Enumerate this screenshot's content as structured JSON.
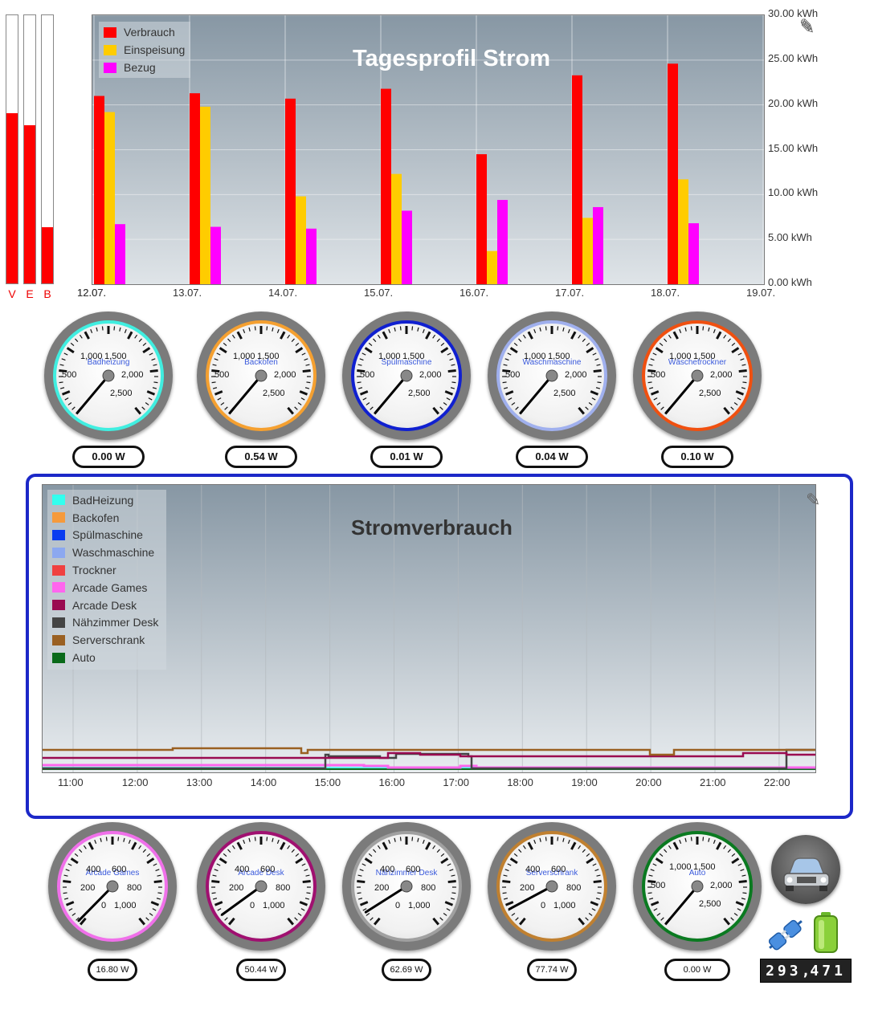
{
  "level_bars": [
    {
      "label": "V",
      "level": 0.635
    },
    {
      "label": "E",
      "level": 0.59
    },
    {
      "label": "B",
      "level": 0.21
    }
  ],
  "chart_data": [
    {
      "type": "bar",
      "title": "Tagesprofil Strom",
      "x_ticks": [
        "12.07.",
        "13.07.",
        "14.07.",
        "15.07.",
        "16.07.",
        "17.07.",
        "18.07.",
        "19.07."
      ],
      "categories": [
        "12.07.",
        "13.07.",
        "14.07.",
        "15.07.",
        "16.07.",
        "17.07.",
        "18.07."
      ],
      "series": [
        {
          "name": "Verbrauch",
          "color": "#ff0000",
          "values": [
            21.0,
            21.3,
            20.7,
            21.8,
            14.5,
            23.3,
            24.6
          ]
        },
        {
          "name": "Einspeisung",
          "color": "#ffcc00",
          "values": [
            19.2,
            19.8,
            9.8,
            12.3,
            3.7,
            7.4,
            11.7
          ]
        },
        {
          "name": "Bezug",
          "color": "#ff00ff",
          "values": [
            6.7,
            6.4,
            6.2,
            8.2,
            9.4,
            8.6,
            6.8
          ]
        }
      ],
      "y_ticks": [
        "0.00 kWh",
        "5.00 kWh",
        "10.00 kWh",
        "15.00 kWh",
        "20.00 kWh",
        "25.00 kWh",
        "30.00 kWh"
      ],
      "ylim": [
        0,
        30
      ],
      "legend_position": "top-left",
      "grid": true
    },
    {
      "type": "line",
      "title": "Stromverbrauch",
      "x_ticks": [
        "11:00",
        "12:00",
        "13:00",
        "14:00",
        "15:00",
        "16:00",
        "17:00",
        "18:00",
        "19:00",
        "20:00",
        "21:00",
        "22:00"
      ],
      "legend_position": "top-left",
      "grid": true,
      "series": [
        {
          "name": "BadHeizung",
          "color": "#33ffee"
        },
        {
          "name": "Backofen",
          "color": "#f59a3c"
        },
        {
          "name": "Spülmaschine",
          "color": "#0a3cf0"
        },
        {
          "name": "Waschmaschine",
          "color": "#8ca8f0"
        },
        {
          "name": "Trockner",
          "color": "#f04040"
        },
        {
          "name": "Arcade Games",
          "color": "#ff66ee"
        },
        {
          "name": "Arcade Desk",
          "color": "#9a0a50"
        },
        {
          "name": "Nähzimmer Desk",
          "color": "#444444"
        },
        {
          "name": "Serverschrank",
          "color": "#9a6022"
        },
        {
          "name": "Auto",
          "color": "#0a6a1a"
        }
      ]
    }
  ],
  "gauges_top": [
    {
      "name": "Badheizung",
      "value": "0.00 W",
      "ring": "#40eee0",
      "needle": 0.0,
      "scale": [
        "500",
        "1,000",
        "1,500",
        "2,000",
        "2,500"
      ]
    },
    {
      "name": "Backofen",
      "value": "0.54 W",
      "ring": "#f5a030",
      "needle": 0.0,
      "scale": [
        "500",
        "1,000",
        "1,500",
        "2,000",
        "2,500"
      ]
    },
    {
      "name": "Spülmaschine",
      "value": "0.01 W",
      "ring": "#1020d0",
      "needle": 0.0,
      "scale": [
        "500",
        "1,000",
        "1,500",
        "2,000",
        "2,500"
      ]
    },
    {
      "name": "Waschmaschine",
      "value": "0.04 W",
      "ring": "#a0b0ee",
      "needle": 0.0,
      "scale": [
        "500",
        "1,000",
        "1,500",
        "2,000",
        "2,500"
      ]
    },
    {
      "name": "Wäschetrockner",
      "value": "0.10 W",
      "ring": "#f05010",
      "needle": 0.0,
      "scale": [
        "500",
        "1,000",
        "1,500",
        "2,000",
        "2,500"
      ]
    }
  ],
  "gauges_bottom": [
    {
      "name": "Arcade Games",
      "value": "16.80 W",
      "ring": "#f070ea",
      "needle": 0.016,
      "scale": [
        "0",
        "200",
        "400",
        "600",
        "800",
        "1,000"
      ]
    },
    {
      "name": "Arcade Desk",
      "value": "50.44 W",
      "ring": "#a01070",
      "needle": 0.05,
      "scale": [
        "0",
        "200",
        "400",
        "600",
        "800",
        "1,000"
      ]
    },
    {
      "name": "Nähzimmer Desk",
      "value": "62.69 W",
      "ring": "#a0a0a0",
      "needle": 0.063,
      "scale": [
        "0",
        "200",
        "400",
        "600",
        "800",
        "1,000"
      ]
    },
    {
      "name": "Serverschrank",
      "value": "77.74 W",
      "ring": "#c08030",
      "needle": 0.078,
      "scale": [
        "0",
        "200",
        "400",
        "600",
        "800",
        "1,000"
      ]
    },
    {
      "name": "Auto",
      "value": "0.00 W",
      "ring": "#0a7a20",
      "needle": 0.0,
      "scale": [
        "500",
        "1,000",
        "1,500",
        "2,000",
        "2,500"
      ]
    }
  ],
  "icons": {
    "car": "car-icon",
    "plug": "plug-icon",
    "battery": "battery-icon",
    "edit": "pencil-icon"
  },
  "odometer": {
    "integer": "293",
    "decimal": "471",
    "display": "293,471"
  }
}
